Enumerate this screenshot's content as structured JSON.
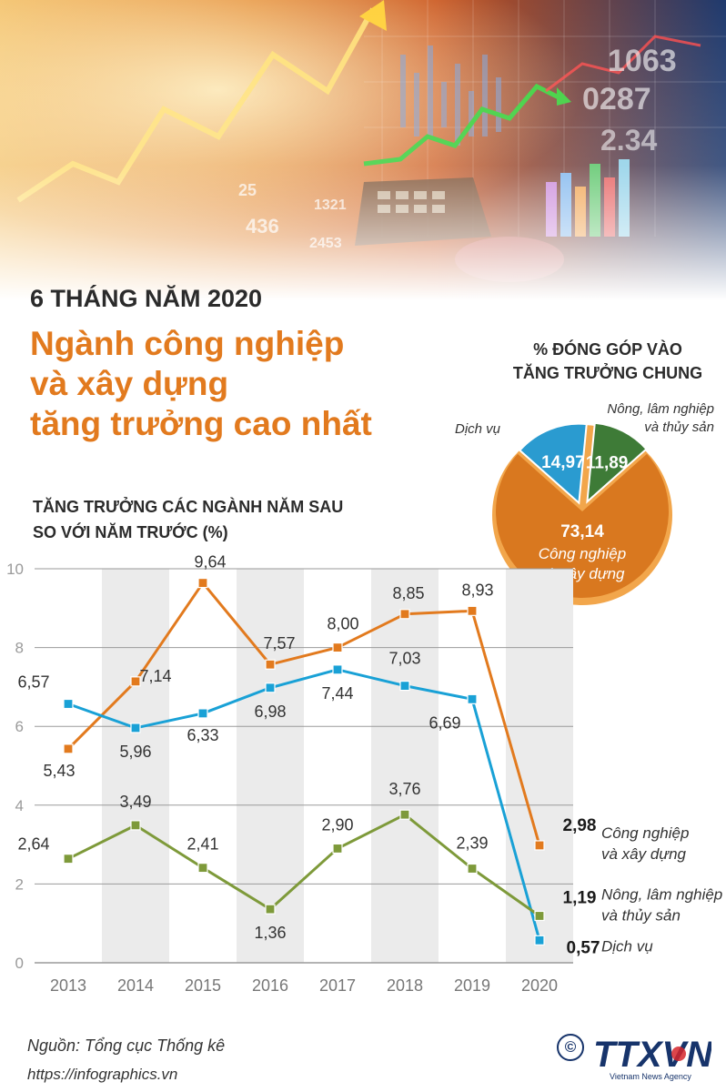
{
  "header": {
    "subhead": "6 THÁNG NĂM 2020",
    "title_lines": [
      "Ngành công nghiệp",
      "và xây dựng",
      "tăng trưởng cao nhất"
    ]
  },
  "banner": {
    "numbers": [
      "1063",
      "0287",
      "2.34",
      "25",
      "1321",
      "436",
      "2453"
    ]
  },
  "pie": {
    "title_lines": [
      "% ĐÓNG GÓP VÀO",
      "TĂNG TRƯỞNG CHUNG"
    ],
    "slices": [
      {
        "label_lines": [
          "Công nghiệp",
          "và xây dựng"
        ],
        "value": 73.14,
        "value_text": "73,14",
        "color": "#d9781f"
      },
      {
        "label_lines": [
          "Dịch vụ"
        ],
        "value": 14.97,
        "value_text": "14,97",
        "color": "#2a9bd0"
      },
      {
        "label_lines": [
          "Nông, lâm nghiệp",
          "và thủy sản"
        ],
        "value": 11.89,
        "value_text": "11,89",
        "color": "#3e7b37"
      }
    ]
  },
  "chart_data": {
    "type": "line",
    "title_lines": [
      "TĂNG TRƯỞNG CÁC NGÀNH NĂM SAU",
      "SO VỚI NĂM TRƯỚC (%)"
    ],
    "x": [
      "2013",
      "2014",
      "2015",
      "2016",
      "2017",
      "2018",
      "2019",
      "2020"
    ],
    "ylim": [
      0,
      10
    ],
    "yticks": [
      "0",
      "2",
      "4",
      "6",
      "8",
      "10"
    ],
    "series": [
      {
        "name": "Công nghiệp và xây dựng",
        "name_lines": [
          "Công nghiệp",
          "và xây dựng"
        ],
        "color": "#e27a1e",
        "values": [
          5.43,
          7.14,
          9.64,
          7.57,
          8.0,
          8.85,
          8.93,
          2.98
        ],
        "labels": [
          "5,43",
          "7,14",
          "9,64",
          "7,57",
          "8,00",
          "8,85",
          "8,93",
          "2,98"
        ]
      },
      {
        "name": "Dịch vụ",
        "name_lines": [
          "Dịch vụ"
        ],
        "color": "#19a1d6",
        "values": [
          6.57,
          5.96,
          6.33,
          6.98,
          7.44,
          7.03,
          6.69,
          0.57
        ],
        "labels": [
          "6,57",
          "5,96",
          "6,33",
          "6,98",
          "7,44",
          "7,03",
          "6,69",
          "0,57"
        ]
      },
      {
        "name": "Nông, lâm nghiệp và thủy sản",
        "name_lines": [
          "Nông, lâm nghiệp",
          "và thủy sản"
        ],
        "color": "#7e9a3a",
        "values": [
          2.64,
          3.49,
          2.41,
          1.36,
          2.9,
          3.76,
          2.39,
          1.19
        ],
        "labels": [
          "2,64",
          "3,49",
          "2,41",
          "1,36",
          "2,90",
          "3,76",
          "2,39",
          "1,19"
        ]
      }
    ],
    "grid": "alternate-shaded-columns",
    "legend": "end-labels-right"
  },
  "footer": {
    "source": "Nguồn: Tổng cục Thống kê",
    "url": "https://infographics.vn",
    "copyright_symbol": "©",
    "logo_text": "TTXVN",
    "logo_subtext": "Vietnam News Agency"
  }
}
